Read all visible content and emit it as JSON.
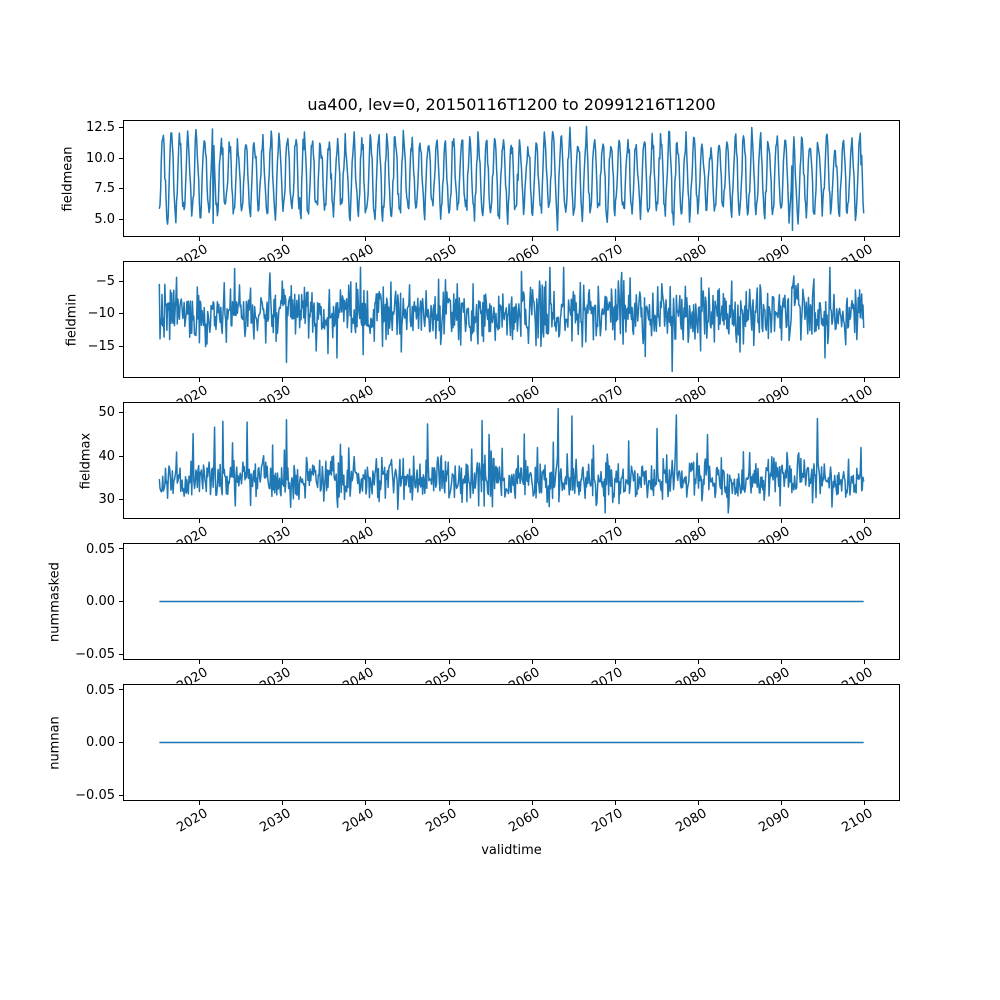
{
  "figure": {
    "title": "ua400, lev=0, 20150116T1200 to 20991216T1200",
    "xlabel": "validtime",
    "background": "#ffffff",
    "frame_color": "#000000",
    "text_color": "#000000",
    "line_color": "#1f77b4"
  },
  "chart_data": {
    "type": "line",
    "title": "ua400, lev=0, 20150116T1200 to 20991216T1200",
    "xlabel": "validtime",
    "grid": false,
    "legend": "none",
    "n_points": 1020,
    "x_start": 2015.042,
    "x_end": 2099.958,
    "xlim": [
      2010.79,
      2104.21
    ],
    "xticks": [
      2020,
      2030,
      2040,
      2050,
      2060,
      2070,
      2080,
      2090,
      2100
    ],
    "xtick_labels": [
      "2020",
      "2030",
      "2040",
      "2050",
      "2060",
      "2070",
      "2080",
      "2090",
      "2100"
    ],
    "line_color": "#1f77b4",
    "line_width": 1.5,
    "subplots": [
      {
        "name": "fieldmean",
        "ylabel": "fieldmean",
        "ylim": [
          3.53,
          13.14
        ],
        "yticks": [
          5.0,
          7.5,
          10.0,
          12.5
        ],
        "ytick_labels": [
          "5.0",
          "7.5",
          "10.0",
          "12.5"
        ],
        "series": {
          "kind": "seasonal",
          "seed": 101,
          "mean": 8.55,
          "amplitude": 2.95,
          "amp_mod": 0.08,
          "noise_sd": 0.5,
          "clip_min": 3.97,
          "clip_max": 12.7,
          "forced": [
            {
              "index": 916,
              "value": 4.0
            },
            {
              "index": 78,
              "value": 4.6
            }
          ]
        }
      },
      {
        "name": "fieldmin",
        "ylabel": "fieldmin",
        "ylim": [
          -19.77,
          -1.92
        ],
        "yticks": [
          -15,
          -10,
          -5
        ],
        "ytick_labels": [
          "−15",
          "−10",
          "−5"
        ],
        "series": {
          "kind": "noise",
          "seed": 202,
          "mean": -9.85,
          "sd": 2.3,
          "clip_min": -18.9,
          "clip_max": -2.75,
          "forced": [
            {
              "index": 742,
              "value": -18.9
            },
            {
              "index": 184,
              "value": -17.5
            },
            {
              "index": 963,
              "value": -16.8
            },
            {
              "index": 350,
              "value": -15.9
            },
            {
              "index": 585,
              "value": -2.75
            }
          ]
        }
      },
      {
        "name": "fieldmax",
        "ylabel": "fieldmax",
        "ylim": [
          25.6,
          52.5
        ],
        "yticks": [
          30,
          40,
          50
        ],
        "ytick_labels": [
          "30",
          "40",
          "50"
        ],
        "series": {
          "kind": "noise_spiky",
          "seed": 303,
          "mean": 34.4,
          "sd": 2.5,
          "spike_prob": 0.025,
          "spike_min": 5,
          "spike_max": 12,
          "clip_min": 26.8,
          "clip_max": 51.2,
          "forced": [
            {
              "index": 577,
              "value": 51.2
            },
            {
              "index": 92,
              "value": 48.2
            },
            {
              "index": 184,
              "value": 48.6
            },
            {
              "index": 748,
              "value": 49.7
            },
            {
              "index": 952,
              "value": 48.9
            },
            {
              "index": 388,
              "value": 47.6
            }
          ]
        }
      },
      {
        "name": "nummasked",
        "ylabel": "nummasked",
        "ylim": [
          -0.0557,
          0.0557
        ],
        "yticks": [
          -0.05,
          0.0,
          0.05
        ],
        "ytick_labels": [
          "−0.05",
          "0.00",
          "0.05"
        ],
        "series": {
          "kind": "constant",
          "value": 0.0
        }
      },
      {
        "name": "numnan",
        "ylabel": "numnan",
        "ylim": [
          -0.0557,
          0.0557
        ],
        "yticks": [
          -0.05,
          0.0,
          0.05
        ],
        "ytick_labels": [
          "−0.05",
          "0.00",
          "0.05"
        ],
        "series": {
          "kind": "constant",
          "value": 0.0
        }
      }
    ]
  }
}
